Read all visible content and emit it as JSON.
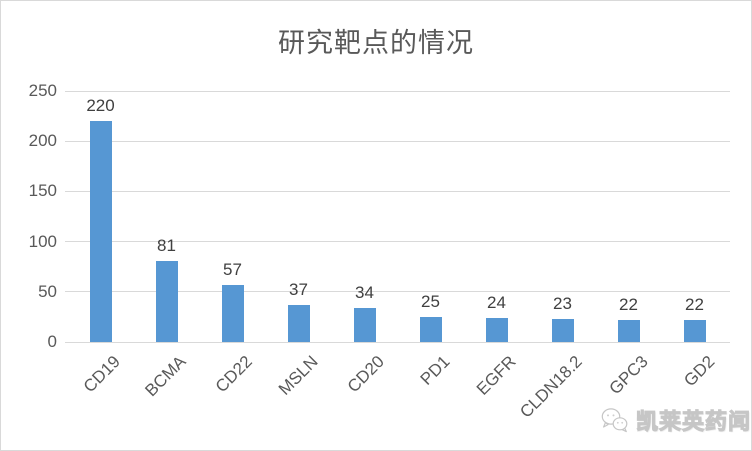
{
  "chart_data": {
    "type": "bar",
    "title": "研究靶点的情况",
    "categories": [
      "CD19",
      "BCMA",
      "CD22",
      "MSLN",
      "CD20",
      "PD1",
      "EGFR",
      "CLDN18.2",
      "GPC3",
      "GD2"
    ],
    "values": [
      220,
      81,
      57,
      37,
      34,
      25,
      24,
      23,
      22,
      22
    ],
    "xlabel": "",
    "ylabel": "",
    "ylim": [
      0,
      250
    ],
    "yticks": [
      0,
      50,
      100,
      150,
      200,
      250
    ],
    "grid": true,
    "legend": false,
    "data_labels": true,
    "bar_color": "#5697d3",
    "gridline_color": "#d9d9d9",
    "value_label_color": "#404040",
    "axis_text_color": "#595959",
    "title_color": "#595959"
  },
  "watermark": {
    "text": "凯莱英药闻",
    "icon": "wechat-chat-bubbles-icon",
    "color": "#c6c6c6"
  }
}
